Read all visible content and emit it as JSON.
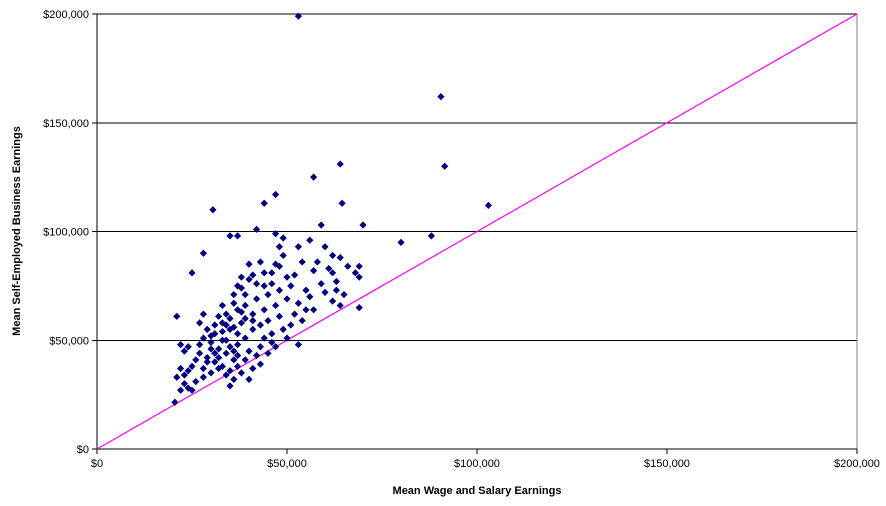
{
  "chart_data": {
    "type": "scatter",
    "title": "",
    "xlabel": "Mean Wage and Salary Earnings",
    "ylabel": "Mean Self-Employed Business Earnings",
    "xlim": [
      0,
      200000
    ],
    "ylim": [
      0,
      200000
    ],
    "x_ticks": [
      0,
      50000,
      100000,
      150000,
      200000
    ],
    "y_ticks": [
      0,
      50000,
      100000,
      150000,
      200000
    ],
    "x_tick_labels": [
      "$0",
      "$50,000",
      "$100,000",
      "$150,000",
      "$200,000"
    ],
    "y_tick_labels": [
      "$0",
      "$50,000",
      "$100,000",
      "$150,000",
      "$200,000"
    ],
    "grid": "horizontal",
    "legend": "none",
    "reference_line": {
      "x": [
        0,
        200000
      ],
      "y": [
        0,
        200000
      ],
      "color": "#ff00ff"
    },
    "marker_color": "#000080",
    "series": [
      {
        "points": [
          [
            53000,
            199000
          ],
          [
            90500,
            162000
          ],
          [
            91500,
            130000
          ],
          [
            64000,
            131000
          ],
          [
            57000,
            125000
          ],
          [
            47000,
            117000
          ],
          [
            44000,
            113000
          ],
          [
            64500,
            113000
          ],
          [
            30500,
            110000
          ],
          [
            103000,
            112000
          ],
          [
            35000,
            98000
          ],
          [
            37000,
            98000
          ],
          [
            47000,
            99000
          ],
          [
            88000,
            98000
          ],
          [
            80000,
            95000
          ],
          [
            70000,
            103000
          ],
          [
            59000,
            103000
          ],
          [
            42000,
            101000
          ],
          [
            28000,
            90000
          ],
          [
            25000,
            81000
          ],
          [
            49000,
            97000
          ],
          [
            48000,
            93000
          ],
          [
            53000,
            93000
          ],
          [
            56000,
            96000
          ],
          [
            60000,
            93000
          ],
          [
            62000,
            89000
          ],
          [
            64000,
            88000
          ],
          [
            61000,
            83000
          ],
          [
            62000,
            81000
          ],
          [
            63000,
            77000
          ],
          [
            68000,
            81000
          ],
          [
            69000,
            79000
          ],
          [
            65000,
            71000
          ],
          [
            62000,
            68000
          ],
          [
            55000,
            73000
          ],
          [
            53000,
            67000
          ],
          [
            56000,
            70000
          ],
          [
            59000,
            76000
          ],
          [
            57000,
            82000
          ],
          [
            58000,
            86000
          ],
          [
            54000,
            86000
          ],
          [
            49000,
            89000
          ],
          [
            48000,
            84000
          ],
          [
            50000,
            79000
          ],
          [
            46000,
            76000
          ],
          [
            44000,
            81000
          ],
          [
            43000,
            86000
          ],
          [
            40000,
            85000
          ],
          [
            41000,
            80000
          ],
          [
            38000,
            79000
          ],
          [
            37000,
            75000
          ],
          [
            39000,
            71000
          ],
          [
            42000,
            69000
          ],
          [
            45000,
            71000
          ],
          [
            48000,
            73000
          ],
          [
            51000,
            75000
          ],
          [
            50000,
            69000
          ],
          [
            47000,
            66000
          ],
          [
            44000,
            64000
          ],
          [
            41000,
            62000
          ],
          [
            38000,
            63000
          ],
          [
            36000,
            67000
          ],
          [
            34000,
            62000
          ],
          [
            33000,
            58000
          ],
          [
            35000,
            55000
          ],
          [
            37000,
            53000
          ],
          [
            39000,
            51000
          ],
          [
            41000,
            55000
          ],
          [
            43000,
            57000
          ],
          [
            45000,
            59000
          ],
          [
            46000,
            53000
          ],
          [
            49000,
            55000
          ],
          [
            48000,
            61000
          ],
          [
            52000,
            62000
          ],
          [
            54000,
            59000
          ],
          [
            51000,
            57000
          ],
          [
            50000,
            51000
          ],
          [
            53000,
            48000
          ],
          [
            46000,
            49000
          ],
          [
            43000,
            47000
          ],
          [
            40000,
            45000
          ],
          [
            42000,
            43000
          ],
          [
            39000,
            41000
          ],
          [
            37000,
            43000
          ],
          [
            35000,
            47000
          ],
          [
            33000,
            50000
          ],
          [
            31000,
            53000
          ],
          [
            29000,
            55000
          ],
          [
            28000,
            51000
          ],
          [
            30000,
            49000
          ],
          [
            32000,
            46000
          ],
          [
            34000,
            44000
          ],
          [
            36000,
            41000
          ],
          [
            37000,
            38000
          ],
          [
            35000,
            36000
          ],
          [
            33000,
            38000
          ],
          [
            31000,
            40000
          ],
          [
            29000,
            42000
          ],
          [
            27000,
            44000
          ],
          [
            26000,
            41000
          ],
          [
            25000,
            38000
          ],
          [
            24000,
            36000
          ],
          [
            23000,
            34000
          ],
          [
            22000,
            37000
          ],
          [
            21000,
            33000
          ],
          [
            23000,
            30000
          ],
          [
            24000,
            28000
          ],
          [
            22000,
            27000
          ],
          [
            25000,
            27000
          ],
          [
            26000,
            31000
          ],
          [
            28000,
            33000
          ],
          [
            30000,
            35000
          ],
          [
            32000,
            37000
          ],
          [
            34000,
            34000
          ],
          [
            36000,
            32000
          ],
          [
            38000,
            35000
          ],
          [
            40000,
            32000
          ],
          [
            35000,
            29000
          ],
          [
            20500,
            21500
          ],
          [
            21000,
            61000
          ],
          [
            22000,
            48000
          ],
          [
            23000,
            45000
          ],
          [
            24000,
            47000
          ],
          [
            28000,
            62000
          ],
          [
            27000,
            58000
          ],
          [
            31000,
            57000
          ],
          [
            32000,
            61000
          ],
          [
            33000,
            66000
          ],
          [
            36000,
            71000
          ],
          [
            38000,
            74000
          ],
          [
            40000,
            78000
          ],
          [
            42000,
            76000
          ],
          [
            44000,
            75000
          ],
          [
            46000,
            81000
          ],
          [
            47000,
            85000
          ],
          [
            52000,
            80000
          ],
          [
            55000,
            64000
          ],
          [
            57000,
            64000
          ],
          [
            60000,
            72000
          ],
          [
            63000,
            73000
          ],
          [
            64000,
            66000
          ],
          [
            66000,
            84000
          ],
          [
            69000,
            84000
          ],
          [
            69000,
            65000
          ],
          [
            36000,
            56000
          ],
          [
            38000,
            58000
          ],
          [
            39000,
            60000
          ],
          [
            41000,
            59000
          ],
          [
            44000,
            51000
          ],
          [
            37000,
            48000
          ],
          [
            34000,
            50000
          ],
          [
            30000,
            46000
          ],
          [
            29000,
            40000
          ],
          [
            31000,
            44000
          ],
          [
            33000,
            54000
          ],
          [
            35000,
            60000
          ],
          [
            37000,
            64000
          ],
          [
            39000,
            66000
          ],
          [
            45000,
            44000
          ],
          [
            43000,
            39000
          ],
          [
            41000,
            37000
          ],
          [
            47000,
            47000
          ],
          [
            36000,
            45000
          ],
          [
            32000,
            42000
          ],
          [
            28000,
            37000
          ],
          [
            27000,
            48000
          ],
          [
            30000,
            52000
          ],
          [
            34000,
            57000
          ]
        ]
      }
    ]
  }
}
